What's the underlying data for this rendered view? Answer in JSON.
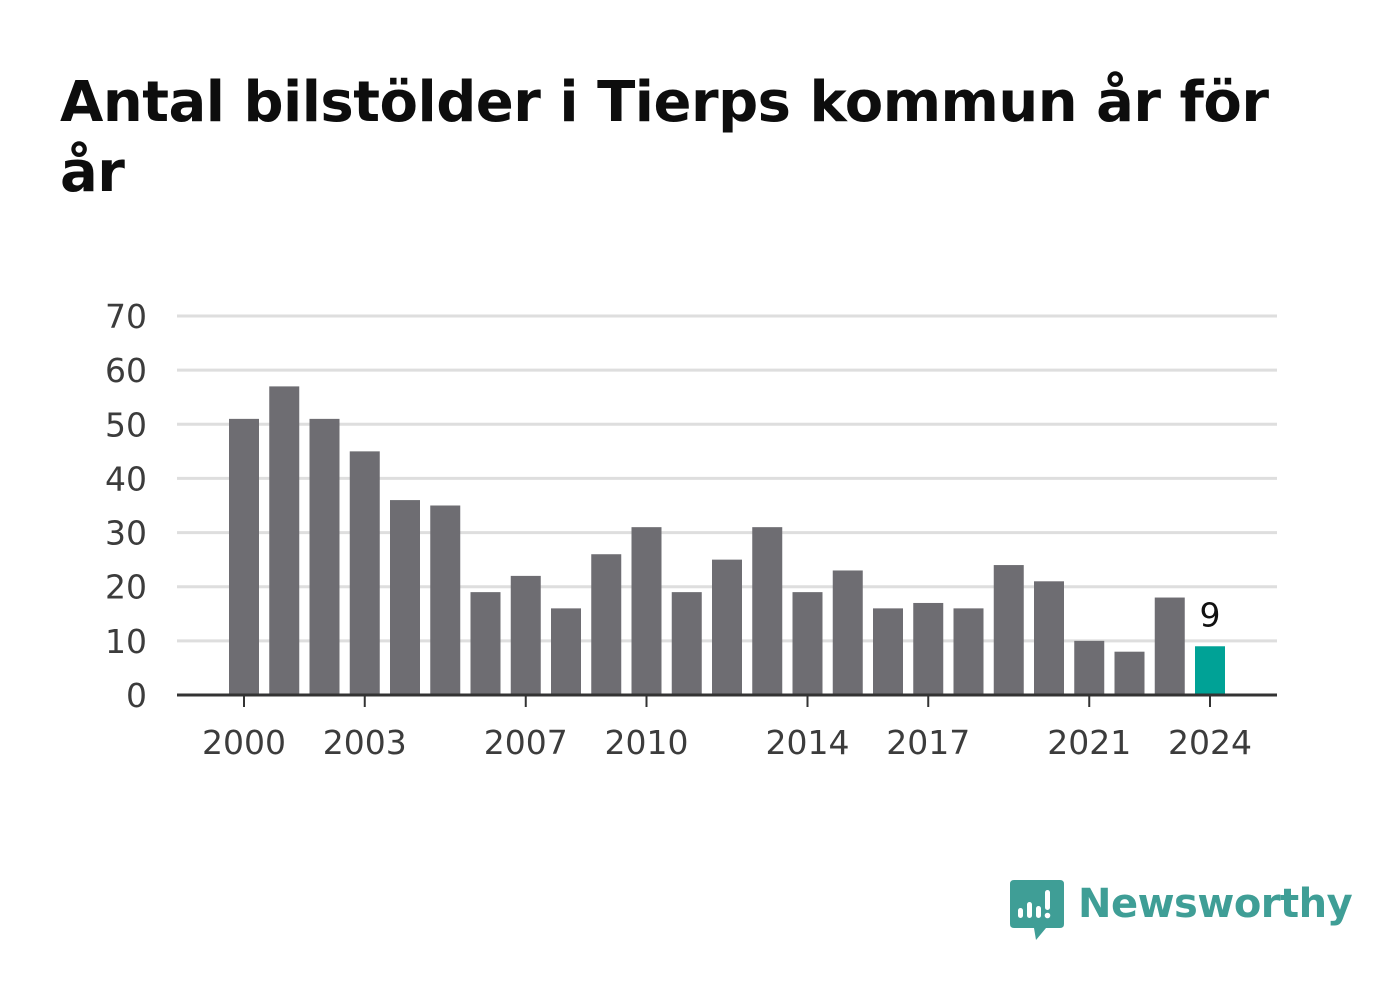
{
  "title": "Antal bilstölder i Tierps kommun år för år",
  "brand": {
    "name": "Newsworthy",
    "icon": "newsworthy-logo-icon",
    "color": "#3f9e96"
  },
  "colors": {
    "bar": "#6e6d72",
    "highlight": "#00a296",
    "grid": "#dedede",
    "axis": "#333333"
  },
  "chart_data": {
    "type": "bar",
    "categories": [
      "2000",
      "2001",
      "2002",
      "2003",
      "2004",
      "2005",
      "2006",
      "2007",
      "2008",
      "2009",
      "2010",
      "2011",
      "2012",
      "2013",
      "2014",
      "2015",
      "2016",
      "2017",
      "2018",
      "2019",
      "2020",
      "2021",
      "2022",
      "2023",
      "2024"
    ],
    "values": [
      51,
      57,
      51,
      45,
      36,
      35,
      19,
      22,
      16,
      26,
      31,
      19,
      25,
      31,
      19,
      23,
      16,
      17,
      16,
      24,
      21,
      10,
      8,
      18,
      9
    ],
    "x_tick_labels": [
      "2000",
      "2003",
      "2007",
      "2010",
      "2014",
      "2017",
      "2021",
      "2024"
    ],
    "y_ticks": [
      0,
      10,
      20,
      30,
      40,
      50,
      60,
      70
    ],
    "ylim": [
      0,
      70
    ],
    "highlight": {
      "category": "2024",
      "label": "9"
    },
    "grid": true,
    "legend": "none"
  }
}
